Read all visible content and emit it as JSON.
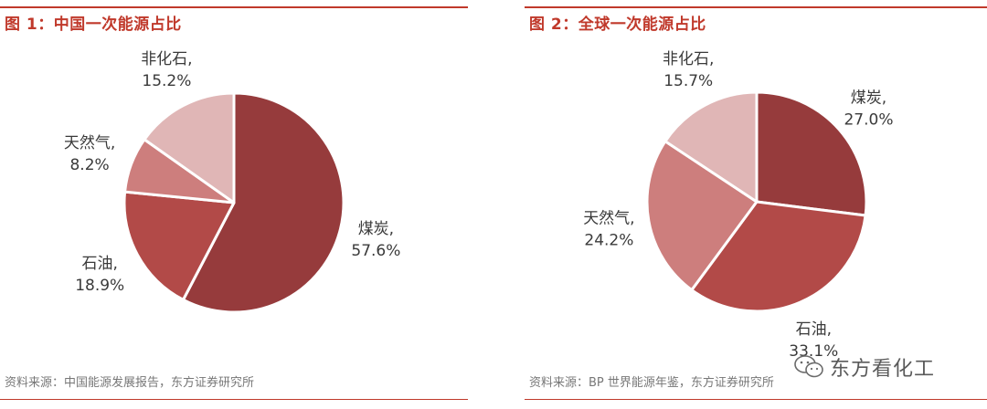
{
  "panels": [
    {
      "title": "图 1：中国一次能源占比",
      "source": "资料来源：中国能源发展报告，东方证券研究所"
    },
    {
      "title": "图 2：全球一次能源占比",
      "source": "资料来源：BP 世界能源年鉴，东方证券研究所"
    }
  ],
  "watermark": {
    "text": "东方看化工",
    "icon": "wechat-icon"
  },
  "colors": {
    "accent": "#c0392b",
    "coal": "#963b3c",
    "oil": "#b24a48",
    "gas": "#cd7e7d",
    "nonfossil": "#e0b6b6"
  },
  "chart_data": [
    {
      "type": "pie",
      "title": "中国一次能源占比",
      "slices": [
        {
          "name": "煤炭",
          "value": 57.6,
          "value_label": "57.6%",
          "color": "#963b3c"
        },
        {
          "name": "石油",
          "value": 18.9,
          "value_label": "18.9%",
          "color": "#b24a48"
        },
        {
          "name": "天然气",
          "value": 8.2,
          "value_label": "8.2%",
          "color": "#cd7e7d"
        },
        {
          "name": "非化石",
          "value": 15.2,
          "value_label": "15.2%",
          "color": "#e0b6b6"
        }
      ]
    },
    {
      "type": "pie",
      "title": "全球一次能源占比",
      "slices": [
        {
          "name": "煤炭",
          "value": 27.0,
          "value_label": "27.0%",
          "color": "#963b3c"
        },
        {
          "name": "石油",
          "value": 33.1,
          "value_label": "33.1%",
          "color": "#b24a48"
        },
        {
          "name": "天然气",
          "value": 24.2,
          "value_label": "24.2%",
          "color": "#cd7e7d"
        },
        {
          "name": "非化石",
          "value": 15.7,
          "value_label": "15.7%",
          "color": "#e0b6b6"
        }
      ]
    }
  ]
}
